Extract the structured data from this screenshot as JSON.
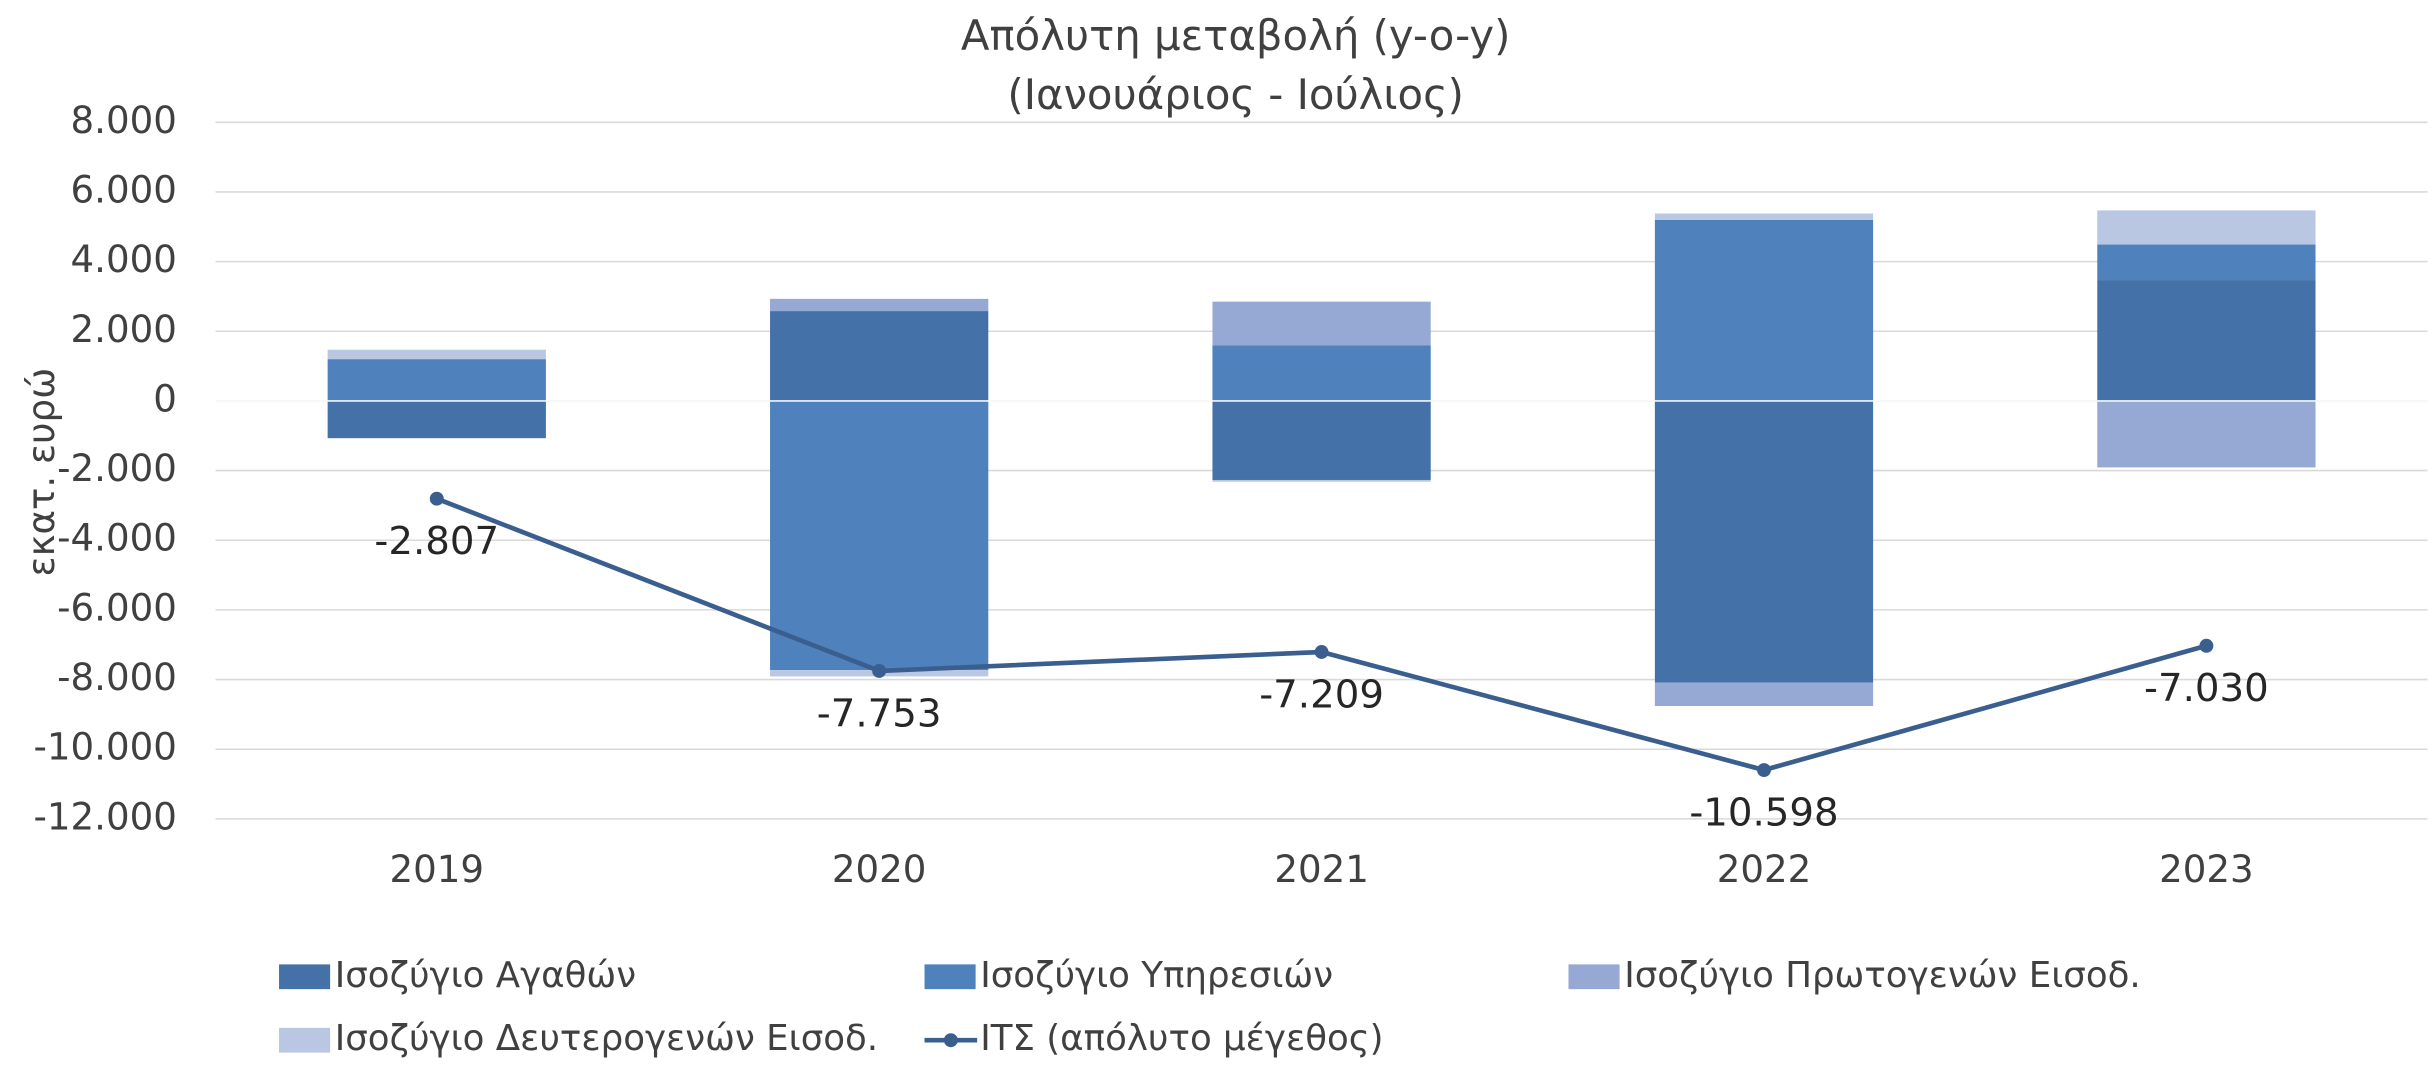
{
  "chart_data": {
    "type": "bar",
    "title": "Απόλυτη μεταβολή (y-o-y)",
    "subtitle": "(Ιανουάριος - Ιούλιος)",
    "y_label": "εκατ. ευρώ",
    "stacked": true,
    "categories": [
      "2019",
      "2020",
      "2021",
      "2022",
      "2023"
    ],
    "series": [
      {
        "name": "Ισοζύγιο Αγαθών",
        "color": "#4472a8",
        "values": [
          -1070,
          2580,
          -2270,
          -8090,
          3470
        ]
      },
      {
        "name": "Ισοζύγιο Υπηρεσιών",
        "color": "#4f81bd",
        "values": [
          1200,
          -7730,
          1600,
          5200,
          1020
        ]
      },
      {
        "name": "Ισοζύγιο Πρωτογενών Εισοδ.",
        "color": "#95a9d4",
        "values": [
          0,
          350,
          1250,
          -670,
          -1910
        ]
      },
      {
        "name": "Ισοζύγιο Δευτερογενών Εισοδ.",
        "color": "#b9c7e3",
        "values": [
          270,
          -180,
          -50,
          180,
          980
        ]
      },
      {
        "name": "ΙΤΣ (απόλυτο μέγεθος)",
        "color": "#3a5f8f",
        "type": "line",
        "values": [
          -2807,
          -7753,
          -7209,
          -10598,
          -7030
        ],
        "value_labels": [
          "-2.807",
          "-7.753",
          "-7.209",
          "-10.598",
          "-7.030"
        ]
      }
    ],
    "ylim": [
      -12000,
      8000
    ],
    "yticks": [
      {
        "value": -12000,
        "label": "-12.000"
      },
      {
        "value": -10000,
        "label": "-10.000"
      },
      {
        "value": -8000,
        "label": "-8.000"
      },
      {
        "value": -6000,
        "label": "-6.000"
      },
      {
        "value": -4000,
        "label": "-4.000"
      },
      {
        "value": -2000,
        "label": "-2.000"
      },
      0,
      {
        "value": 2000,
        "label": "2.000"
      },
      {
        "value": 4000,
        "label": "4.000"
      },
      {
        "value": 6000,
        "label": "6.000"
      },
      {
        "value": 8000,
        "label": "8.000"
      }
    ],
    "grid": true,
    "legend": "bottom"
  }
}
